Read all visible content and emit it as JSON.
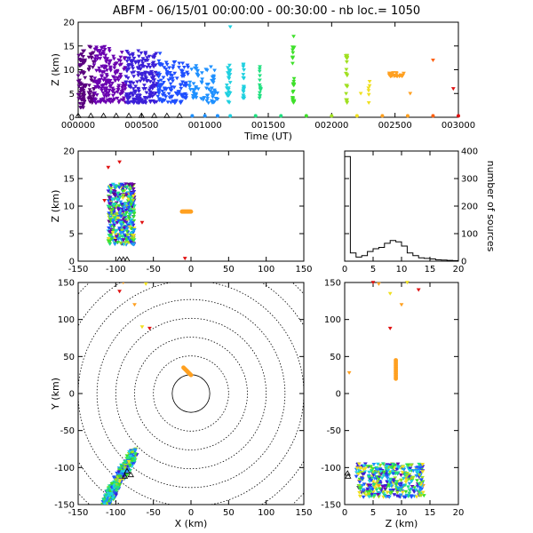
{
  "header": {
    "title": "ABFM - 06/15/01 00:00:00 - 00:30:00 - nb loc.=    1050"
  },
  "chart_data": [
    {
      "id": "time_height",
      "type": "scatter",
      "xlabel": "Time (UT)",
      "ylabel": "Z (km)",
      "xlim": [
        0,
        3000
      ],
      "ylim": [
        0,
        20
      ],
      "xticks": [
        "000000",
        "000500",
        "001000",
        "001500",
        "002000",
        "002500",
        "003000"
      ],
      "yticks": [
        "0",
        "5",
        "10",
        "15",
        "20"
      ],
      "color_scale": "time (purple to red)",
      "clusters": [
        {
          "x": [
            0,
            60
          ],
          "y": [
            2,
            14
          ],
          "n": 70
        },
        {
          "x": [
            80,
            260
          ],
          "y": [
            3,
            15
          ],
          "n": 160
        },
        {
          "x": [
            270,
            500
          ],
          "y": [
            3,
            14
          ],
          "n": 170
        },
        {
          "x": [
            500,
            650
          ],
          "y": [
            3,
            14
          ],
          "n": 120
        },
        {
          "x": [
            650,
            830
          ],
          "y": [
            3,
            12
          ],
          "n": 90
        },
        {
          "x": [
            830,
            950
          ],
          "y": [
            4,
            11
          ],
          "n": 50
        },
        {
          "x": [
            960,
            1100
          ],
          "y": [
            3,
            11
          ],
          "n": 45
        },
        {
          "x": [
            1170,
            1200
          ],
          "y": [
            3,
            12
          ],
          "n": 25
        },
        {
          "x": [
            1300,
            1310
          ],
          "y": [
            4,
            12
          ],
          "n": 18
        },
        {
          "x": [
            1430,
            1440
          ],
          "y": [
            4,
            12
          ],
          "n": 15
        },
        {
          "x": [
            1690,
            1705
          ],
          "y": [
            3,
            17
          ],
          "n": 25
        },
        {
          "x": [
            2110,
            2125
          ],
          "y": [
            3,
            13
          ],
          "n": 20
        },
        {
          "x": [
            2290,
            2300
          ],
          "y": [
            3,
            8
          ],
          "n": 6
        },
        {
          "x": [
            2450,
            2580
          ],
          "y": [
            8.6,
            9.4
          ],
          "n": 25
        }
      ],
      "points": [
        {
          "x": 1200,
          "y": 19
        },
        {
          "x": 1700,
          "y": 17
        },
        {
          "x": 2120,
          "y": 13
        },
        {
          "x": 2800,
          "y": 12
        },
        {
          "x": 2960,
          "y": 6
        },
        {
          "x": 2620,
          "y": 5
        },
        {
          "x": 2230,
          "y": 5
        }
      ],
      "ground_markers": [
        0,
        100,
        200,
        300,
        400,
        500,
        600,
        700,
        800,
        900,
        1000,
        1100,
        1200,
        1400,
        1600,
        1800,
        2000,
        2200,
        2400,
        2600,
        2800,
        3000
      ]
    },
    {
      "id": "x_z",
      "type": "scatter",
      "ylabel": "Z (km)",
      "xlim": [
        -150,
        150
      ],
      "ylim": [
        0,
        20
      ],
      "xticks": [
        "-150",
        "-100",
        "-50",
        "0",
        "50",
        "100",
        "150"
      ],
      "yticks": [
        "0",
        "5",
        "10",
        "15",
        "20"
      ],
      "cluster": {
        "x": [
          -110,
          -75
        ],
        "y": [
          3,
          14
        ],
        "n": 420
      },
      "orange_line": {
        "x": [
          -12,
          0
        ],
        "y": 9
      },
      "points": [
        {
          "x": -110,
          "y": 17
        },
        {
          "x": -95,
          "y": 18
        },
        {
          "x": -115,
          "y": 11
        },
        {
          "x": -65,
          "y": 7
        },
        {
          "x": -8,
          "y": 0.5
        }
      ]
    },
    {
      "id": "histogram",
      "type": "histogram",
      "ylabel": "number of sources",
      "xlim": [
        0,
        20
      ],
      "ylim": [
        0,
        400
      ],
      "xticks": [
        "0",
        "5",
        "10",
        "15",
        "20"
      ],
      "yticks": [
        "0",
        "100",
        "200",
        "300",
        "400"
      ],
      "bins": [
        0,
        1,
        2,
        3,
        4,
        5,
        6,
        7,
        8,
        9,
        10,
        11,
        12,
        13,
        14,
        15,
        16,
        17,
        18,
        19
      ],
      "values": [
        380,
        30,
        15,
        20,
        35,
        45,
        50,
        65,
        75,
        70,
        55,
        30,
        20,
        12,
        10,
        8,
        5,
        4,
        3,
        2
      ]
    },
    {
      "id": "x_y",
      "type": "scatter",
      "xlabel": "X (km)",
      "ylabel": "Y (km)",
      "xlim": [
        -150,
        150
      ],
      "ylim": [
        -150,
        150
      ],
      "xticks": [
        "-150",
        "-100",
        "-50",
        "0",
        "50",
        "100",
        "150"
      ],
      "yticks": [
        "-150",
        "-100",
        "-50",
        "0",
        "50",
        "100",
        "150"
      ],
      "range_rings_km": [
        25,
        50,
        75,
        100,
        125,
        150,
        175,
        200
      ],
      "cluster": {
        "from": [
          -115,
          -150
        ],
        "to": [
          -75,
          -80
        ],
        "n": 420
      },
      "orange_line": {
        "from": [
          -10,
          35
        ],
        "to": [
          0,
          25
        ]
      },
      "points": [
        {
          "x": -65,
          "y": 152
        },
        {
          "x": -90,
          "y": 150
        },
        {
          "x": -60,
          "y": 148
        },
        {
          "x": -95,
          "y": 138
        },
        {
          "x": -75,
          "y": 120
        },
        {
          "x": -65,
          "y": 90
        },
        {
          "x": -55,
          "y": 88
        }
      ]
    },
    {
      "id": "z_y",
      "type": "scatter",
      "xlabel": "Z (km)",
      "xlim": [
        0,
        20
      ],
      "ylim": [
        -150,
        150
      ],
      "xticks": [
        "0",
        "5",
        "10",
        "15",
        "20"
      ],
      "yticks": [
        "-150",
        "-100",
        "-50",
        "0",
        "50",
        "100",
        "150"
      ],
      "cluster": {
        "x": [
          2,
          14
        ],
        "y": [
          -140,
          -95
        ],
        "n": 420
      },
      "orange_line": {
        "x": 9,
        "y": [
          20,
          45
        ]
      },
      "points": [
        {
          "x": 5,
          "y": 150
        },
        {
          "x": 6,
          "y": 148
        },
        {
          "x": 11,
          "y": 150
        },
        {
          "x": 13,
          "y": 140
        },
        {
          "x": 10,
          "y": 120
        },
        {
          "x": 8,
          "y": 135
        },
        {
          "x": 8,
          "y": 88
        },
        {
          "x": 0.8,
          "y": 28
        }
      ]
    }
  ]
}
